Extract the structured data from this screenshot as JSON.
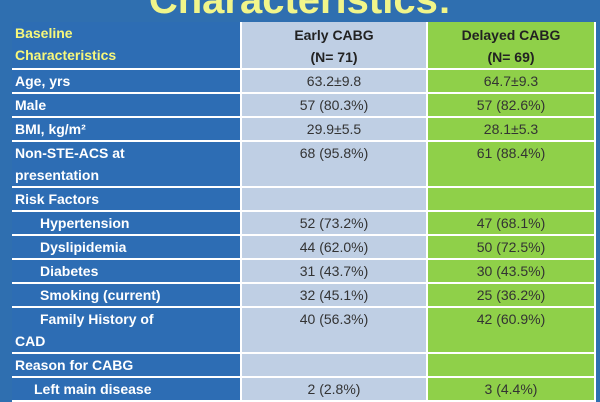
{
  "title": "Characteristics:",
  "header": {
    "label_line1": "Baseline",
    "label_line2": "Characteristics",
    "early_line1": "Early CABG",
    "early_line2": "(N= 71)",
    "delayed_line1": "Delayed CABG",
    "delayed_line2": "(N= 69)"
  },
  "rows": {
    "age": {
      "label": "Age, yrs",
      "early": "63.2±9.8",
      "delayed": "64.7±9.3"
    },
    "male": {
      "label": "Male",
      "early": "57 (80.3%)",
      "delayed": "57 (82.6%)"
    },
    "bmi": {
      "label": "BMI, kg/m²",
      "early": "29.9±5.5",
      "delayed": "28.1±5.3"
    },
    "acs": {
      "label_line1": "Non-STE-ACS at",
      "label_line2": "presentation",
      "early": "68 (95.8%)",
      "delayed": "61 (88.4%)"
    },
    "risk": {
      "label": "Risk Factors"
    },
    "htn": {
      "label": "Hypertension",
      "early": "52 (73.2%)",
      "delayed": "47 (68.1%)"
    },
    "dys": {
      "label": "Dyslipidemia",
      "early": "44 (62.0%)",
      "delayed": "50 (72.5%)"
    },
    "dm": {
      "label": "Diabetes",
      "early": "31 (43.7%)",
      "delayed": "30 (43.5%)"
    },
    "smoke": {
      "label": "Smoking (current)",
      "early": "32 (45.1%)",
      "delayed": "25 (36.2%)"
    },
    "fh": {
      "label_line1": "Family History of",
      "label_line2": "CAD",
      "early": "40 (56.3%)",
      "delayed": "42 (60.9%)"
    },
    "reason": {
      "label": "Reason for CABG"
    },
    "lmd": {
      "label": "Left main disease",
      "early": "2 (2.8%)",
      "delayed": "3 (4.4%)"
    }
  }
}
